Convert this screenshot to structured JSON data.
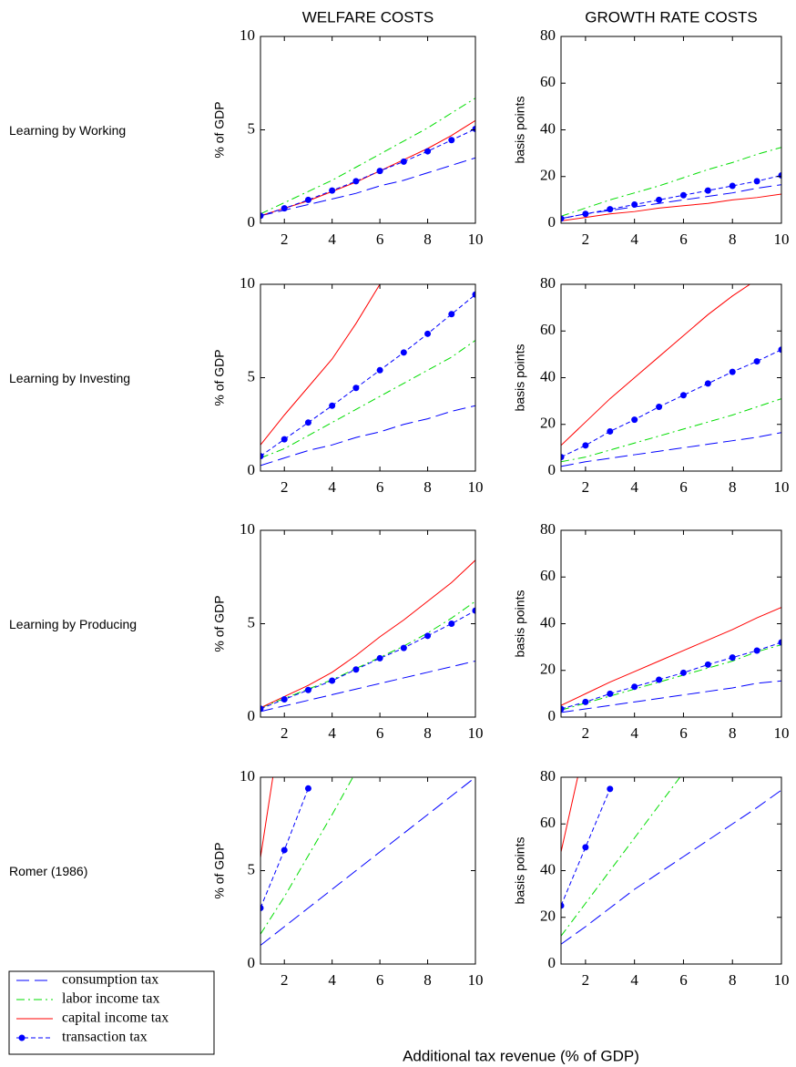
{
  "row_labels": [
    "Learning by Working",
    "Learning by Investing",
    "Learning by Producing",
    "Romer (1986)"
  ],
  "xlabel": "Additional tax revenue (% of GDP)",
  "chart_data": [
    {
      "type": "line",
      "title": "WELFARE COSTS",
      "ylabel": "% of GDP",
      "x": [
        1,
        2,
        3,
        4,
        5,
        6,
        7,
        8,
        9,
        10
      ],
      "xlim": [
        1,
        10
      ],
      "xticks": [
        2,
        4,
        6,
        8,
        10
      ],
      "ylim": [
        0,
        10
      ],
      "yticks": [
        0,
        5,
        10
      ],
      "series": [
        {
          "name": "consumption tax",
          "color": "#0000ff",
          "linestyle": "long-dash",
          "values": [
            0.4,
            0.7,
            1.0,
            1.3,
            1.6,
            2.0,
            2.3,
            2.7,
            3.1,
            3.5
          ]
        },
        {
          "name": "labor income tax",
          "color": "#00dd00",
          "linestyle": "dash-dot",
          "values": [
            0.5,
            1.1,
            1.7,
            2.3,
            3.0,
            3.7,
            4.4,
            5.1,
            5.9,
            6.7
          ]
        },
        {
          "name": "capital income tax",
          "color": "#ff0000",
          "linestyle": "solid",
          "values": [
            0.4,
            0.8,
            1.2,
            1.7,
            2.2,
            2.8,
            3.4,
            4.0,
            4.7,
            5.5
          ]
        },
        {
          "name": "transaction tax",
          "color": "#0000ff",
          "linestyle": "dashed",
          "marker": "o",
          "values": [
            0.4,
            0.8,
            1.25,
            1.75,
            2.25,
            2.8,
            3.3,
            3.85,
            4.45,
            5.05
          ]
        }
      ]
    },
    {
      "type": "line",
      "title": "GROWTH RATE COSTS",
      "ylabel": "basis points",
      "x": [
        1,
        2,
        3,
        4,
        5,
        6,
        7,
        8,
        9,
        10
      ],
      "xlim": [
        1,
        10
      ],
      "xticks": [
        2,
        4,
        6,
        8,
        10
      ],
      "ylim": [
        0,
        80
      ],
      "yticks": [
        0,
        20,
        40,
        60,
        80
      ],
      "series": [
        {
          "color": "#0000ff",
          "linestyle": "long-dash",
          "values": [
            2,
            4,
            5.5,
            7,
            8.5,
            10,
            11.5,
            13,
            15,
            16.5
          ]
        },
        {
          "color": "#00dd00",
          "linestyle": "dash-dot",
          "values": [
            3,
            6.5,
            10,
            13,
            16,
            19.5,
            23,
            26,
            29.5,
            32.5
          ]
        },
        {
          "color": "#ff0000",
          "linestyle": "solid",
          "values": [
            1,
            2.5,
            4,
            5,
            6.5,
            7.5,
            8.5,
            10,
            11,
            12.5
          ]
        },
        {
          "color": "#0000ff",
          "linestyle": "dashed",
          "marker": "o",
          "values": [
            2,
            4,
            6,
            8,
            10,
            12,
            14,
            16,
            18,
            20.5
          ]
        }
      ]
    },
    {
      "type": "line",
      "ylabel": "% of GDP",
      "x": [
        1,
        2,
        3,
        4,
        5,
        6,
        7,
        8,
        9,
        10
      ],
      "xlim": [
        1,
        10
      ],
      "xticks": [
        2,
        4,
        6,
        8,
        10
      ],
      "ylim": [
        0,
        10
      ],
      "yticks": [
        0,
        5,
        10
      ],
      "series": [
        {
          "color": "#0000ff",
          "linestyle": "long-dash",
          "values": [
            0.3,
            0.7,
            1.1,
            1.4,
            1.8,
            2.1,
            2.5,
            2.8,
            3.2,
            3.5
          ]
        },
        {
          "color": "#00dd00",
          "linestyle": "dash-dot",
          "values": [
            0.7,
            1.2,
            1.9,
            2.6,
            3.3,
            4.0,
            4.7,
            5.4,
            6.1,
            7.0
          ]
        },
        {
          "color": "#ff0000",
          "linestyle": "solid",
          "values": [
            1.4,
            3.0,
            4.5,
            6.0,
            7.9,
            10.0,
            null,
            null,
            null,
            null
          ]
        },
        {
          "color": "#0000ff",
          "linestyle": "dashed",
          "marker": "o",
          "values": [
            0.8,
            1.7,
            2.6,
            3.5,
            4.45,
            5.4,
            6.35,
            7.35,
            8.4,
            9.45
          ]
        }
      ]
    },
    {
      "type": "line",
      "ylabel": "basis points",
      "x": [
        1,
        2,
        3,
        4,
        5,
        6,
        7,
        8,
        9,
        10
      ],
      "xlim": [
        1,
        10
      ],
      "xticks": [
        2,
        4,
        6,
        8,
        10
      ],
      "ylim": [
        0,
        80
      ],
      "yticks": [
        0,
        20,
        40,
        60,
        80
      ],
      "series": [
        {
          "color": "#0000ff",
          "linestyle": "long-dash",
          "values": [
            2,
            4,
            5.5,
            7,
            8.5,
            10,
            11.5,
            13,
            14.5,
            16.5
          ]
        },
        {
          "color": "#00dd00",
          "linestyle": "dash-dot",
          "values": [
            4,
            6,
            9,
            12,
            15,
            18,
            21,
            24,
            27.5,
            31
          ]
        },
        {
          "color": "#ff0000",
          "linestyle": "solid",
          "values": [
            11,
            21,
            31,
            40,
            49,
            58,
            67,
            75,
            82,
            null
          ]
        },
        {
          "color": "#0000ff",
          "linestyle": "dashed",
          "marker": "o",
          "values": [
            6,
            11,
            17,
            22,
            27.5,
            32.5,
            37.5,
            42.5,
            47,
            52
          ]
        }
      ]
    },
    {
      "type": "line",
      "ylabel": "% of GDP",
      "x": [
        1,
        2,
        3,
        4,
        5,
        6,
        7,
        8,
        9,
        10
      ],
      "xlim": [
        1,
        10
      ],
      "xticks": [
        2,
        4,
        6,
        8,
        10
      ],
      "ylim": [
        0,
        10
      ],
      "yticks": [
        0,
        5,
        10
      ],
      "series": [
        {
          "color": "#0000ff",
          "linestyle": "long-dash",
          "values": [
            0.3,
            0.6,
            0.9,
            1.2,
            1.5,
            1.8,
            2.1,
            2.4,
            2.7,
            3.0
          ]
        },
        {
          "color": "#00dd00",
          "linestyle": "dash-dot",
          "values": [
            0.5,
            1.0,
            1.5,
            2.0,
            2.6,
            3.2,
            3.8,
            4.5,
            5.3,
            6.2
          ]
        },
        {
          "color": "#ff0000",
          "linestyle": "solid",
          "values": [
            0.5,
            1.1,
            1.7,
            2.4,
            3.3,
            4.3,
            5.2,
            6.2,
            7.2,
            8.4
          ]
        },
        {
          "color": "#0000ff",
          "linestyle": "dashed",
          "marker": "o",
          "values": [
            0.45,
            0.95,
            1.45,
            1.95,
            2.55,
            3.15,
            3.7,
            4.35,
            5.0,
            5.7
          ]
        }
      ]
    },
    {
      "type": "line",
      "ylabel": "basis points",
      "x": [
        1,
        2,
        3,
        4,
        5,
        6,
        7,
        8,
        9,
        10
      ],
      "xlim": [
        1,
        10
      ],
      "xticks": [
        2,
        4,
        6,
        8,
        10
      ],
      "ylim": [
        0,
        80
      ],
      "yticks": [
        0,
        20,
        40,
        60,
        80
      ],
      "series": [
        {
          "color": "#0000ff",
          "linestyle": "long-dash",
          "values": [
            2,
            3.5,
            5,
            6.5,
            8,
            9.5,
            11,
            12.5,
            14.5,
            15.5
          ]
        },
        {
          "color": "#00dd00",
          "linestyle": "dash-dot",
          "values": [
            3,
            6,
            9,
            12,
            15,
            18,
            21,
            24,
            28,
            31
          ]
        },
        {
          "color": "#ff0000",
          "linestyle": "solid",
          "values": [
            5,
            10,
            15,
            19.5,
            24,
            28.5,
            33,
            37.5,
            42.5,
            47
          ]
        },
        {
          "color": "#0000ff",
          "linestyle": "dashed",
          "marker": "o",
          "values": [
            3.5,
            6.5,
            10,
            13,
            16,
            19,
            22.5,
            25.5,
            28.5,
            32
          ]
        }
      ]
    },
    {
      "type": "line",
      "ylabel": "% of GDP",
      "x": [
        1,
        2,
        3,
        4,
        5,
        6,
        7,
        8,
        9,
        10
      ],
      "xlim": [
        1,
        10
      ],
      "xticks": [
        2,
        4,
        6,
        8,
        10
      ],
      "ylim": [
        0,
        10
      ],
      "yticks": [
        0,
        5,
        10
      ],
      "series": [
        {
          "color": "#0000ff",
          "linestyle": "long-dash",
          "values": [
            1.0,
            2.0,
            3.0,
            4.0,
            5.0,
            6.0,
            7.0,
            8.0,
            9.0,
            10.0
          ]
        },
        {
          "color": "#00dd00",
          "linestyle": "dash-dot",
          "values": [
            1.6,
            3.6,
            5.8,
            8.0,
            10.3,
            null,
            null,
            null,
            null,
            null
          ]
        },
        {
          "color": "#ff0000",
          "linestyle": "solid",
          "values": [
            5.7,
            14,
            null,
            null,
            null,
            null,
            null,
            null,
            null,
            null
          ]
        },
        {
          "color": "#0000ff",
          "linestyle": "dashed",
          "marker": "o",
          "values": [
            3.0,
            6.1,
            9.4,
            null,
            null,
            null,
            null,
            null,
            null,
            null
          ]
        }
      ]
    },
    {
      "type": "line",
      "ylabel": "basis points",
      "x": [
        1,
        2,
        3,
        4,
        5,
        6,
        7,
        8,
        9,
        10
      ],
      "xlim": [
        1,
        10
      ],
      "xticks": [
        2,
        4,
        6,
        8,
        10
      ],
      "ylim": [
        0,
        80
      ],
      "yticks": [
        0,
        20,
        40,
        60,
        80
      ],
      "series": [
        {
          "color": "#0000ff",
          "linestyle": "long-dash",
          "values": [
            8.5,
            16,
            24,
            32,
            39,
            46,
            53,
            60,
            67,
            74.5
          ]
        },
        {
          "color": "#00dd00",
          "linestyle": "dash-dot",
          "values": [
            12,
            26,
            40,
            54,
            68,
            82,
            null,
            null,
            null,
            null
          ]
        },
        {
          "color": "#ff0000",
          "linestyle": "solid",
          "values": [
            48,
            95,
            null,
            null,
            null,
            null,
            null,
            null,
            null,
            null
          ]
        },
        {
          "color": "#0000ff",
          "linestyle": "dashed",
          "marker": "o",
          "values": [
            25,
            50,
            75,
            null,
            null,
            null,
            null,
            null,
            null,
            null
          ]
        }
      ]
    }
  ]
}
